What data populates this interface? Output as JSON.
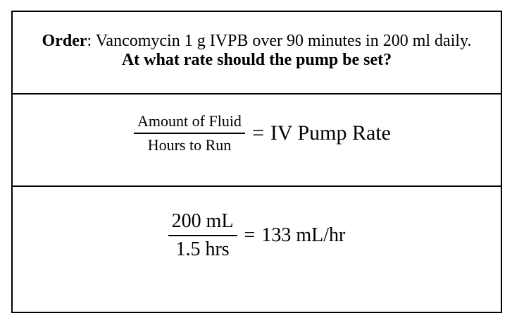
{
  "card": {
    "order_row": {
      "label": "Order",
      "rest": ": Vancomycin 1 g IVPB over 90 minutes in 200 ml daily.",
      "question": "At what rate should the pump be set?"
    },
    "formula_row": {
      "numerator": "Amount of Fluid",
      "denominator": "Hours to Run",
      "equals": "=",
      "result": "IV Pump Rate"
    },
    "calculation_row": {
      "numerator": "200 mL",
      "denominator": "1.5 hrs",
      "equals": "=",
      "result": "133 mL/hr"
    }
  },
  "colors": {
    "background": "#ffffff",
    "border": "#000000",
    "text": "#000000"
  }
}
